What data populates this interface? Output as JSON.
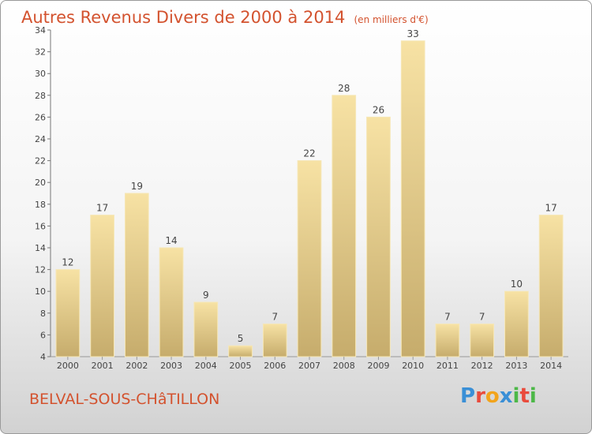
{
  "title": {
    "main": "Autres Revenus Divers de 2000 à 2014",
    "unit": "(en milliers d'€)"
  },
  "location": "BELVAL-SOUS-CHâTILLON",
  "logo": {
    "letters": [
      {
        "char": "P",
        "color": "#3a8fd6"
      },
      {
        "char": "r",
        "color": "#e94b3c"
      },
      {
        "char": "o",
        "color": "#f2a41c"
      },
      {
        "char": "x",
        "color": "#3a8fd6"
      },
      {
        "char": "i",
        "color": "#4db848"
      },
      {
        "char": "t",
        "color": "#e94b3c"
      },
      {
        "char": "i",
        "color": "#4db848"
      }
    ]
  },
  "chart_data": {
    "type": "bar",
    "categories": [
      "2000",
      "2001",
      "2002",
      "2003",
      "2004",
      "2005",
      "2006",
      "2007",
      "2008",
      "2009",
      "2010",
      "2011",
      "2012",
      "2013",
      "2014"
    ],
    "values": [
      12,
      17,
      19,
      14,
      9,
      5,
      7,
      22,
      28,
      26,
      33,
      7,
      7,
      10,
      17
    ],
    "ylim": [
      4,
      34
    ],
    "yticks": [
      4,
      6,
      8,
      10,
      12,
      14,
      16,
      18,
      20,
      22,
      24,
      26,
      28,
      30,
      32,
      34
    ],
    "grid": false,
    "bar_color": "#e2c77f",
    "title": "Autres Revenus Divers de 2000 à 2014",
    "xlabel": "",
    "ylabel": ""
  }
}
